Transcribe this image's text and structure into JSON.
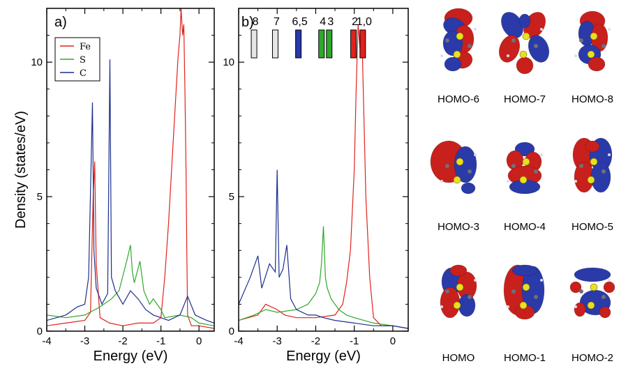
{
  "colors": {
    "Fe": "#e0221c",
    "S": "#2ea82b",
    "C": "#1c2f8c",
    "lobe_red": "#c8201c",
    "lobe_blue": "#2a3aa8",
    "atom_yellow": "#e8e020",
    "atom_gray": "#707078"
  },
  "chart_data": [
    {
      "type": "line",
      "panel_label": "a)",
      "xlabel": "Energy (eV)",
      "ylabel": "Density (states/eV)",
      "xlim": [
        -4,
        0.4
      ],
      "ylim": [
        0,
        12
      ],
      "xticks": [
        "-4",
        "-3",
        "-2",
        "-1",
        "0"
      ],
      "yticks": [
        "0",
        "5",
        "10"
      ],
      "legend": {
        "position": "top-left",
        "entries": [
          "Fe",
          "S",
          "C"
        ]
      },
      "series": [
        {
          "name": "Fe",
          "color": "#e0221c",
          "points": [
            [
              -4.0,
              0.2
            ],
            [
              -3.5,
              0.3
            ],
            [
              -3.0,
              0.4
            ],
            [
              -2.85,
              0.7
            ],
            [
              -2.78,
              5.0
            ],
            [
              -2.74,
              6.3
            ],
            [
              -2.7,
              2.5
            ],
            [
              -2.6,
              0.5
            ],
            [
              -2.35,
              0.3
            ],
            [
              -2.0,
              0.2
            ],
            [
              -1.6,
              0.3
            ],
            [
              -1.2,
              0.3
            ],
            [
              -1.0,
              0.5
            ],
            [
              -0.9,
              2.0
            ],
            [
              -0.8,
              4.0
            ],
            [
              -0.7,
              6.5
            ],
            [
              -0.62,
              8.5
            ],
            [
              -0.55,
              10.2
            ],
            [
              -0.5,
              11.0
            ],
            [
              -0.47,
              12.0
            ],
            [
              -0.43,
              11.0
            ],
            [
              -0.4,
              11.4
            ],
            [
              -0.37,
              9.0
            ],
            [
              -0.34,
              6.0
            ],
            [
              -0.32,
              3.0
            ],
            [
              -0.3,
              0.6
            ],
            [
              -0.2,
              0.2
            ],
            [
              0.0,
              0.2
            ],
            [
              0.4,
              0.1
            ]
          ]
        },
        {
          "name": "S",
          "color": "#2ea82b",
          "points": [
            [
              -4.0,
              0.6
            ],
            [
              -3.5,
              0.5
            ],
            [
              -3.0,
              0.6
            ],
            [
              -2.6,
              0.9
            ],
            [
              -2.3,
              1.2
            ],
            [
              -2.1,
              1.5
            ],
            [
              -1.9,
              2.6
            ],
            [
              -1.8,
              3.2
            ],
            [
              -1.75,
              2.2
            ],
            [
              -1.7,
              1.8
            ],
            [
              -1.55,
              2.6
            ],
            [
              -1.45,
              1.5
            ],
            [
              -1.3,
              1.0
            ],
            [
              -1.2,
              1.2
            ],
            [
              -1.0,
              0.8
            ],
            [
              -0.9,
              0.5
            ],
            [
              -0.5,
              0.6
            ],
            [
              -0.2,
              0.5
            ],
            [
              0.0,
              0.3
            ],
            [
              0.4,
              0.2
            ]
          ]
        },
        {
          "name": "C",
          "color": "#1c2f8c",
          "points": [
            [
              -4.0,
              0.4
            ],
            [
              -3.5,
              0.6
            ],
            [
              -3.2,
              0.9
            ],
            [
              -3.0,
              1.0
            ],
            [
              -2.9,
              2.0
            ],
            [
              -2.8,
              8.5
            ],
            [
              -2.76,
              3.0
            ],
            [
              -2.7,
              1.6
            ],
            [
              -2.55,
              1.0
            ],
            [
              -2.4,
              1.4
            ],
            [
              -2.34,
              10.1
            ],
            [
              -2.3,
              2.0
            ],
            [
              -2.2,
              1.5
            ],
            [
              -2.0,
              1.0
            ],
            [
              -1.8,
              1.5
            ],
            [
              -1.6,
              1.2
            ],
            [
              -1.4,
              0.8
            ],
            [
              -1.2,
              0.6
            ],
            [
              -1.0,
              0.5
            ],
            [
              -0.8,
              0.4
            ],
            [
              -0.5,
              0.6
            ],
            [
              -0.3,
              1.3
            ],
            [
              -0.1,
              0.6
            ],
            [
              0.2,
              0.4
            ],
            [
              0.4,
              0.3
            ]
          ]
        }
      ]
    },
    {
      "type": "line",
      "panel_label": "b)",
      "xlabel": "Energy (eV)",
      "ylabel": "",
      "xlim": [
        -4,
        0.4
      ],
      "ylim": [
        0,
        12
      ],
      "xticks": [
        "-4",
        "-3",
        "-2",
        "-1",
        "0"
      ],
      "yticks": [
        "0",
        "5",
        "10"
      ],
      "series": [
        {
          "name": "Fe",
          "color": "#e0221c",
          "points": [
            [
              -4.0,
              0.4
            ],
            [
              -3.5,
              0.6
            ],
            [
              -3.3,
              1.0
            ],
            [
              -3.0,
              0.8
            ],
            [
              -2.8,
              0.6
            ],
            [
              -2.5,
              0.5
            ],
            [
              -2.0,
              0.5
            ],
            [
              -1.5,
              0.6
            ],
            [
              -1.3,
              1.0
            ],
            [
              -1.2,
              1.8
            ],
            [
              -1.1,
              3.0
            ],
            [
              -1.0,
              6.0
            ],
            [
              -0.95,
              9.0
            ],
            [
              -0.9,
              11.4
            ],
            [
              -0.85,
              10.5
            ],
            [
              -0.8,
              11.0
            ],
            [
              -0.75,
              8.0
            ],
            [
              -0.7,
              5.0
            ],
            [
              -0.6,
              2.0
            ],
            [
              -0.5,
              0.5
            ],
            [
              -0.3,
              0.2
            ],
            [
              0.0,
              0.2
            ],
            [
              0.4,
              0.1
            ]
          ]
        },
        {
          "name": "S",
          "color": "#2ea82b",
          "points": [
            [
              -4.0,
              0.4
            ],
            [
              -3.6,
              0.6
            ],
            [
              -3.3,
              0.8
            ],
            [
              -3.0,
              0.7
            ],
            [
              -2.5,
              0.8
            ],
            [
              -2.2,
              1.0
            ],
            [
              -2.0,
              1.4
            ],
            [
              -1.9,
              1.8
            ],
            [
              -1.85,
              2.5
            ],
            [
              -1.8,
              3.9
            ],
            [
              -1.75,
              2.0
            ],
            [
              -1.7,
              1.6
            ],
            [
              -1.6,
              1.2
            ],
            [
              -1.4,
              0.8
            ],
            [
              -1.2,
              0.6
            ],
            [
              -1.0,
              0.5
            ],
            [
              -0.5,
              0.3
            ],
            [
              0.0,
              0.2
            ],
            [
              0.4,
              0.1
            ]
          ]
        },
        {
          "name": "C",
          "color": "#1c2f8c",
          "points": [
            [
              -4.0,
              1.0
            ],
            [
              -3.7,
              2.0
            ],
            [
              -3.5,
              2.8
            ],
            [
              -3.4,
              1.6
            ],
            [
              -3.2,
              2.5
            ],
            [
              -3.05,
              2.2
            ],
            [
              -3.0,
              6.0
            ],
            [
              -2.95,
              2.0
            ],
            [
              -2.85,
              2.3
            ],
            [
              -2.75,
              3.2
            ],
            [
              -2.65,
              1.2
            ],
            [
              -2.5,
              0.8
            ],
            [
              -2.2,
              0.6
            ],
            [
              -2.0,
              0.6
            ],
            [
              -1.8,
              0.5
            ],
            [
              -1.5,
              0.4
            ],
            [
              -1.0,
              0.3
            ],
            [
              -0.5,
              0.2
            ],
            [
              0.0,
              0.2
            ],
            [
              0.4,
              0.1
            ]
          ]
        }
      ],
      "bands": [
        {
          "label": "8",
          "energy": -3.6,
          "color": "#e6e6e6"
        },
        {
          "label": "7",
          "energy": -3.05,
          "color": "#e6e6e6"
        },
        {
          "label": "6,5",
          "energy": -2.45,
          "color": "#2a3aa8"
        },
        {
          "label": "4",
          "energy": -1.85,
          "color": "#2ea82b"
        },
        {
          "label": "3",
          "energy": -1.65,
          "color": "#2ea82b"
        },
        {
          "label": "2",
          "energy": -1.02,
          "color": "#e0221c"
        },
        {
          "label": "1,0",
          "energy": -0.78,
          "color": "#e0221c"
        }
      ]
    }
  ],
  "orbitals": [
    "HOMO-6",
    "HOMO-7",
    "HOMO-8",
    "HOMO-3",
    "HOMO-4",
    "HOMO-5",
    "HOMO",
    "HOMO-1",
    "HOMO-2"
  ]
}
